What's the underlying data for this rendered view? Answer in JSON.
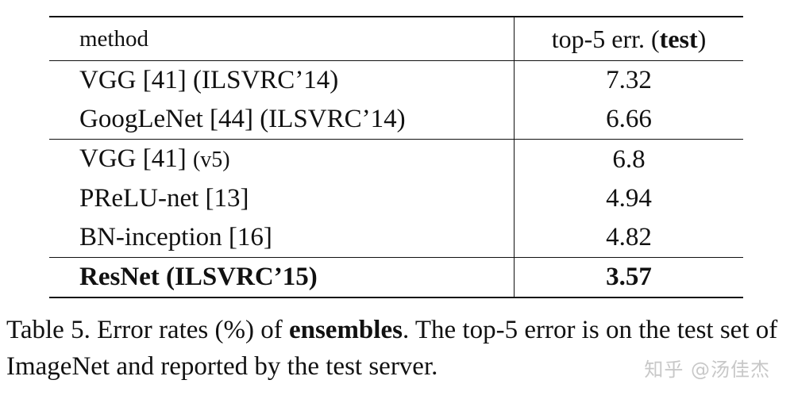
{
  "table": {
    "header": {
      "method_label": "method",
      "value_label_prefix": "top-5 err. (",
      "value_label_bold": "test",
      "value_label_suffix": ")"
    },
    "groups": [
      {
        "rows": [
          {
            "method": "VGG [41] (ILSVRC’14)",
            "suffix": "",
            "value": "7.32"
          },
          {
            "method": "GoogLeNet [44] (ILSVRC’14)",
            "suffix": "",
            "value": "6.66"
          }
        ]
      },
      {
        "rows": [
          {
            "method": "VGG [41] ",
            "suffix": "(v5)",
            "value": "6.8"
          },
          {
            "method": "PReLU-net [13]",
            "suffix": "",
            "value": "4.94"
          },
          {
            "method": "BN-inception [16]",
            "suffix": "",
            "value": "4.82"
          }
        ]
      },
      {
        "rows": [
          {
            "method": "ResNet (ILSVRC’15)",
            "suffix": "",
            "value": "3.57"
          }
        ]
      }
    ]
  },
  "caption": {
    "part1": "Table 5. Error rates (%) of ",
    "bold": "ensembles",
    "part2": ".  The top-5 error is on the test set of ImageNet and reported by the test server."
  },
  "watermark": "知乎 @汤佳杰"
}
